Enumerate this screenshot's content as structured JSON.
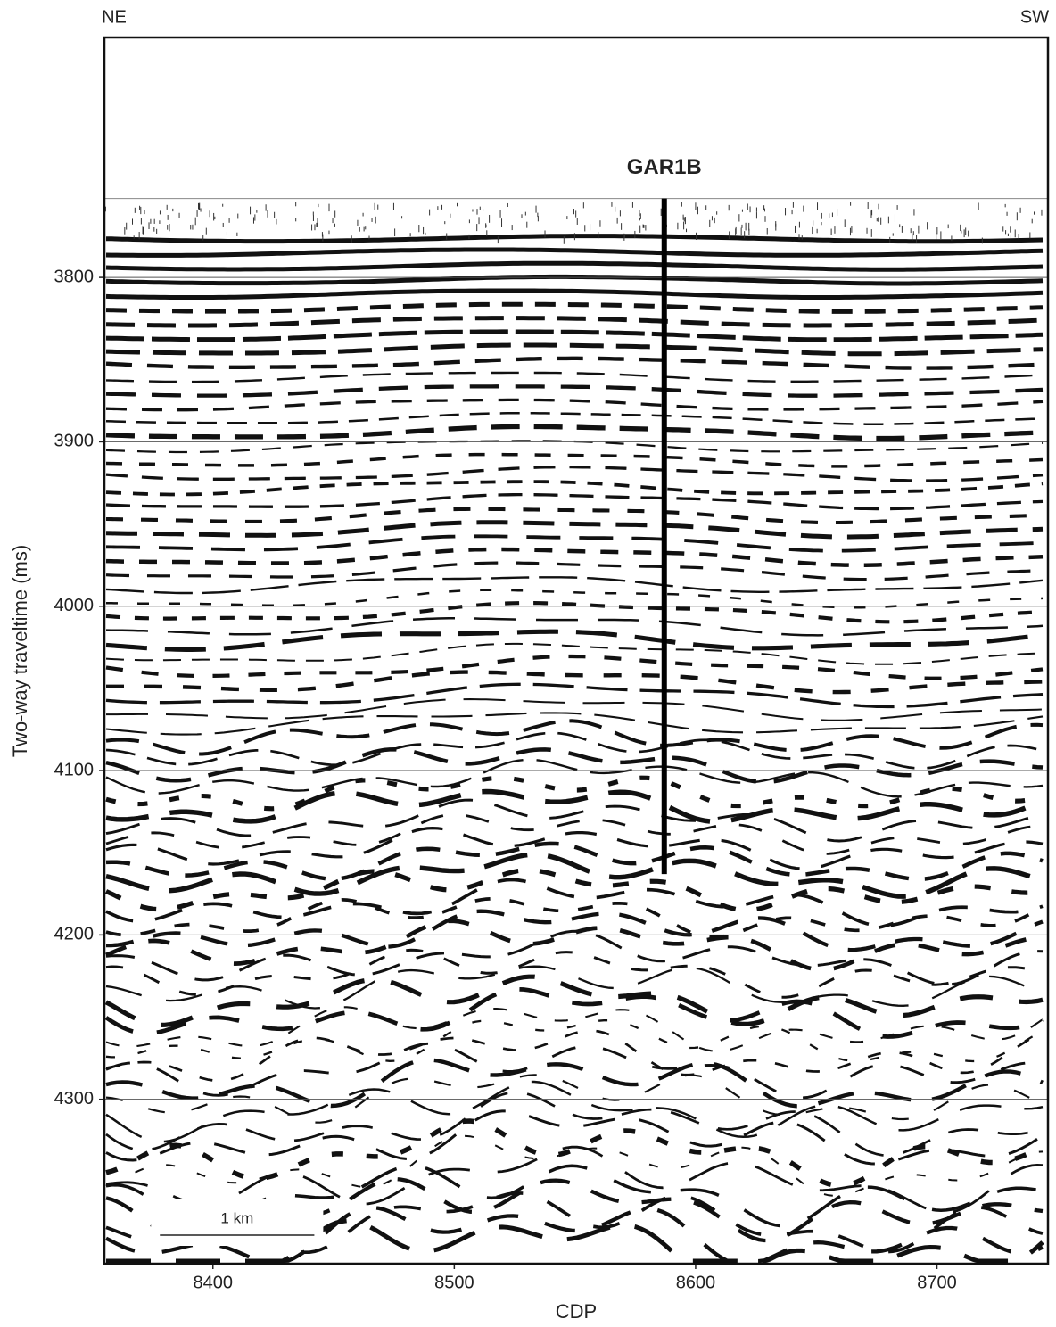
{
  "chart_data": {
    "type": "seismic",
    "corner_labels": [
      "NE",
      "SW"
    ],
    "xlabel": "CDP",
    "ylabel": "Two-way traveltime (ms)",
    "xlim": [
      8355,
      8746
    ],
    "xticks": [
      8400,
      8500,
      8600,
      8700
    ],
    "ylim": [
      3654,
      4400
    ],
    "yticks": [
      3800,
      3900,
      4000,
      4100,
      4200,
      4300
    ],
    "y_inverted": true,
    "grid": true,
    "section_top": 3752,
    "well": {
      "name": "GAR1B",
      "x": 8587,
      "y": [
        3752,
        4163
      ],
      "color": "#000000"
    },
    "scale_bar": {
      "label": "1 km",
      "x": [
        8378,
        8442
      ]
    }
  }
}
